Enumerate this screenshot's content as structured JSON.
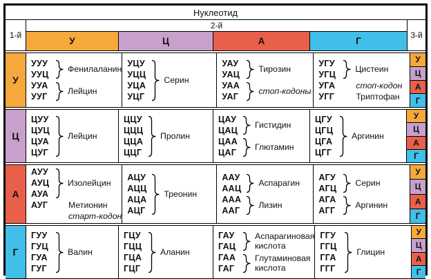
{
  "table": {
    "title": "Нуклеотид",
    "pos1_label": "1-й",
    "pos2_label": "2-й",
    "pos3_label": "3-й",
    "second_headers": [
      "У",
      "Ц",
      "А",
      "Г"
    ],
    "third_col": [
      "У",
      "Ц",
      "А",
      "Г"
    ],
    "colors": {
      "У": "#f5a93c",
      "Ц": "#c7a0cc",
      "А": "#e8604a",
      "Г": "#41bfe8"
    },
    "rows": [
      {
        "first": "У",
        "cells": [
          {
            "groups": [
              {
                "codons": [
                  "УУУ",
                  "УУЦ"
                ],
                "brace": true,
                "label": [
                  {
                    "text": "Фенилаланин"
                  }
                ]
              },
              {
                "codons": [
                  "УУА",
                  "УУГ"
                ],
                "brace": true,
                "label": [
                  {
                    "text": "Лейцин"
                  }
                ]
              }
            ]
          },
          {
            "groups": [
              {
                "codons": [
                  "УЦУ",
                  "УЦЦ",
                  "УЦА",
                  "УЦГ"
                ],
                "brace": true,
                "label": [
                  {
                    "text": "Серин"
                  }
                ]
              }
            ]
          },
          {
            "groups": [
              {
                "codons": [
                  "УАУ",
                  "УАЦ"
                ],
                "brace": true,
                "label": [
                  {
                    "text": "Тирозин"
                  }
                ]
              },
              {
                "codons": [
                  "УАА",
                  "УАГ"
                ],
                "brace": true,
                "label": [
                  {
                    "text": "стоп-кодоны",
                    "italic": true
                  }
                ]
              }
            ]
          },
          {
            "groups": [
              {
                "codons": [
                  "УГУ",
                  "УГЦ"
                ],
                "brace": true,
                "label": [
                  {
                    "text": "Цистеин"
                  }
                ]
              },
              {
                "codons": [
                  "УГА"
                ],
                "brace": false,
                "label": [
                  {
                    "text": "стоп-кодон",
                    "italic": true
                  }
                ]
              },
              {
                "codons": [
                  "УГГ"
                ],
                "brace": false,
                "label": [
                  {
                    "text": "Триптофан"
                  }
                ]
              }
            ]
          }
        ]
      },
      {
        "first": "Ц",
        "cells": [
          {
            "groups": [
              {
                "codons": [
                  "ЦУУ",
                  "ЦУЦ",
                  "ЦУА",
                  "ЦУГ"
                ],
                "brace": true,
                "label": [
                  {
                    "text": "Лейцин"
                  }
                ]
              }
            ]
          },
          {
            "groups": [
              {
                "codons": [
                  "ЦЦУ",
                  "ЦЦЦ",
                  "ЦЦА",
                  "ЦЦГ"
                ],
                "brace": true,
                "label": [
                  {
                    "text": "Пролин"
                  }
                ]
              }
            ]
          },
          {
            "groups": [
              {
                "codons": [
                  "ЦАУ",
                  "ЦАЦ"
                ],
                "brace": true,
                "label": [
                  {
                    "text": "Гистидин"
                  }
                ]
              },
              {
                "codons": [
                  "ЦАА",
                  "ЦАГ"
                ],
                "brace": true,
                "label": [
                  {
                    "text": "Глютамин"
                  }
                ]
              }
            ]
          },
          {
            "groups": [
              {
                "codons": [
                  "ЦГУ",
                  "ЦГЦ",
                  "ЦГА",
                  "ЦГГ"
                ],
                "brace": true,
                "label": [
                  {
                    "text": "Аргинин"
                  }
                ]
              }
            ]
          }
        ]
      },
      {
        "first": "А",
        "cells": [
          {
            "groups": [
              {
                "codons": [
                  "АУУ",
                  "АУЦ",
                  "АУА"
                ],
                "brace": true,
                "label": [
                  {
                    "text": "Изолейцин"
                  }
                ]
              },
              {
                "codons": [
                  "АУГ"
                ],
                "brace": false,
                "label": [
                  {
                    "text": "Метионин"
                  },
                  {
                    "text": "старт-кодон",
                    "italic": true
                  }
                ]
              }
            ]
          },
          {
            "groups": [
              {
                "codons": [
                  "АЦУ",
                  "АЦЦ",
                  "АЦА",
                  "АЦГ"
                ],
                "brace": true,
                "label": [
                  {
                    "text": "Треонин"
                  }
                ]
              }
            ]
          },
          {
            "groups": [
              {
                "codons": [
                  "ААУ",
                  "ААЦ"
                ],
                "brace": true,
                "label": [
                  {
                    "text": "Аспарагин"
                  }
                ]
              },
              {
                "codons": [
                  "ААА",
                  "ААГ"
                ],
                "brace": true,
                "label": [
                  {
                    "text": "Лизин"
                  }
                ]
              }
            ]
          },
          {
            "groups": [
              {
                "codons": [
                  "АГУ",
                  "АГЦ"
                ],
                "brace": true,
                "label": [
                  {
                    "text": "Серин"
                  }
                ]
              },
              {
                "codons": [
                  "АГА",
                  "АГГ"
                ],
                "brace": true,
                "label": [
                  {
                    "text": "Аргинин"
                  }
                ]
              }
            ]
          }
        ]
      },
      {
        "first": "Г",
        "cells": [
          {
            "groups": [
              {
                "codons": [
                  "ГУУ",
                  "ГУЦ",
                  "ГУА",
                  "ГУГ"
                ],
                "brace": true,
                "label": [
                  {
                    "text": "Валин"
                  }
                ]
              }
            ]
          },
          {
            "groups": [
              {
                "codons": [
                  "ГЦУ",
                  "ГЦЦ",
                  "ГЦА",
                  "ГЦГ"
                ],
                "brace": true,
                "label": [
                  {
                    "text": "Аланин"
                  }
                ]
              }
            ]
          },
          {
            "groups": [
              {
                "codons": [
                  "ГАУ",
                  "ГАЦ"
                ],
                "brace": true,
                "label": [
                  {
                    "text": "Аспарагиновая"
                  },
                  {
                    "text": "кислота"
                  }
                ]
              },
              {
                "codons": [
                  "ГАА",
                  "ГАГ"
                ],
                "brace": true,
                "label": [
                  {
                    "text": "Глутаминовая"
                  },
                  {
                    "text": "кислота"
                  }
                ]
              }
            ]
          },
          {
            "groups": [
              {
                "codons": [
                  "ГГУ",
                  "ГГЦ",
                  "ГГА",
                  "ГГГ"
                ],
                "brace": true,
                "label": [
                  {
                    "text": "Глицин"
                  }
                ]
              }
            ]
          }
        ]
      }
    ]
  }
}
